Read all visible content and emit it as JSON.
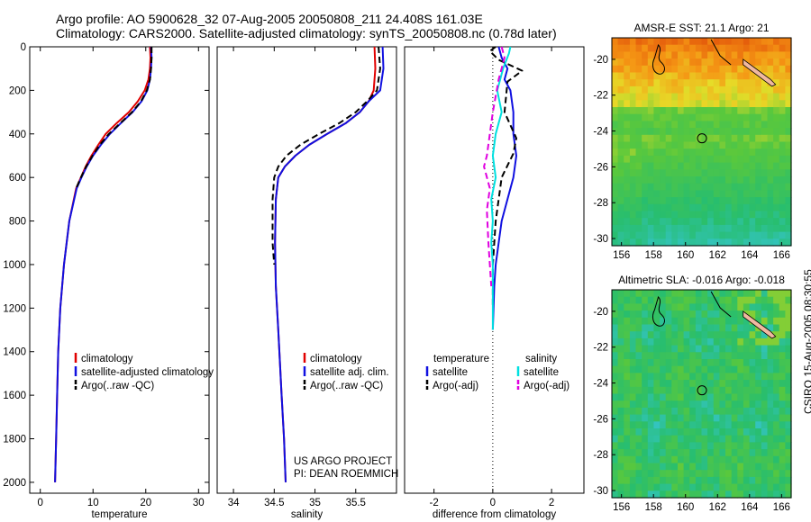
{
  "header": {
    "line1": "Argo profile: AO 5900628_32 07-Aug-2005 20050808_211 24.408S 161.03E",
    "line2": "Climatology: CARS2000. Satellite-adjusted climatology: synTS_20050808.nc (0.78d later)"
  },
  "credit": "CSIRO 15-Aug-2005 08:30:55",
  "colors": {
    "red": "#e00000",
    "blue": "#1010e0",
    "black": "#000000",
    "cyan": "#00e0e0",
    "magenta": "#e000e0"
  },
  "chart_data": [
    {
      "type": "line",
      "xlabel": "temperature",
      "xlim": [
        -2,
        32
      ],
      "ylim": [
        0,
        2050
      ],
      "xticks": [
        0,
        10,
        20,
        30
      ],
      "yticks": [
        0,
        200,
        400,
        600,
        800,
        1000,
        1200,
        1400,
        1600,
        1800,
        2000
      ],
      "legend": [
        "climatology",
        "satellite-adjusted climatology",
        "Argo(..raw -QC)"
      ],
      "series": [
        {
          "name": "climatology",
          "color": "red",
          "dash": "",
          "x": [
            20.8,
            20.9,
            20.8,
            20.5,
            19.8,
            18.5,
            16.8,
            14.5,
            12.4,
            11.0,
            9.7,
            8.6,
            7.7,
            6.8,
            5.5,
            4.5,
            3.8,
            3.4,
            3.2,
            3.0,
            2.8
          ],
          "y": [
            0,
            50,
            100,
            150,
            200,
            250,
            300,
            350,
            400,
            450,
            500,
            550,
            600,
            650,
            800,
            1000,
            1200,
            1400,
            1600,
            1800,
            2000
          ]
        },
        {
          "name": "satellite-adjusted climatology",
          "color": "blue",
          "dash": "",
          "x": [
            21.0,
            21.1,
            21.0,
            20.8,
            20.3,
            19.2,
            17.5,
            15.3,
            13.2,
            11.5,
            10.0,
            8.8,
            7.8,
            6.9,
            5.5,
            4.5,
            3.8,
            3.4,
            3.2,
            3.0,
            2.8
          ],
          "y": [
            0,
            50,
            100,
            150,
            200,
            250,
            300,
            350,
            400,
            450,
            500,
            550,
            600,
            650,
            800,
            1000,
            1200,
            1400,
            1600,
            1800,
            2000
          ]
        },
        {
          "name": "Argo(..raw -QC)",
          "color": "black",
          "dash": "7 4",
          "x": [
            21.1,
            21.1,
            21.0,
            20.8,
            20.2,
            19.1,
            17.4,
            15.2,
            13.0,
            11.3,
            9.9,
            8.7,
            7.7,
            6.8
          ],
          "y": [
            0,
            50,
            100,
            150,
            200,
            250,
            300,
            350,
            400,
            450,
            500,
            550,
            600,
            650
          ]
        }
      ],
      "annotations": []
    },
    {
      "type": "line",
      "xlabel": "salinity",
      "xlim": [
        33.8,
        36.0
      ],
      "ylim": [
        0,
        2050
      ],
      "xticks": [
        34,
        34.5,
        35,
        35.5
      ],
      "yticks": [],
      "legend": [
        "climatology",
        "satellite adj. clim.",
        "Argo(..raw -QC)"
      ],
      "series": [
        {
          "name": "climatology",
          "color": "red",
          "dash": "",
          "x": [
            35.73,
            35.74,
            35.72,
            35.66,
            35.55,
            35.38,
            35.15,
            34.93,
            34.76,
            34.63,
            34.55,
            34.52,
            34.51,
            34.52,
            34.55,
            34.59,
            34.62,
            34.64
          ],
          "y": [
            0,
            100,
            200,
            250,
            300,
            350,
            400,
            450,
            500,
            550,
            600,
            700,
            900,
            1100,
            1300,
            1600,
            1800,
            2000
          ]
        },
        {
          "name": "satellite adj. clim.",
          "color": "blue",
          "dash": "",
          "x": [
            35.83,
            35.84,
            35.8,
            35.66,
            35.55,
            35.38,
            35.15,
            34.93,
            34.76,
            34.63,
            34.55,
            34.52,
            34.51,
            34.52,
            34.55,
            34.59,
            34.62,
            34.64
          ],
          "y": [
            0,
            100,
            200,
            250,
            300,
            350,
            400,
            450,
            500,
            550,
            600,
            700,
            900,
            1100,
            1300,
            1600,
            1800,
            2000
          ]
        },
        {
          "name": "Argo(..raw -QC)",
          "color": "black",
          "dash": "7 4",
          "x": [
            35.78,
            35.8,
            35.76,
            35.64,
            35.5,
            35.3,
            35.05,
            34.82,
            34.65,
            34.55,
            34.5,
            34.48,
            34.48,
            34.5
          ],
          "y": [
            0,
            100,
            200,
            250,
            300,
            350,
            400,
            450,
            500,
            550,
            600,
            700,
            900,
            1000
          ]
        }
      ],
      "annotations": [
        "US ARGO PROJECT",
        "PI: DEAN ROEMMICH"
      ]
    },
    {
      "type": "line",
      "xlabel": "difference from climatology",
      "xlim": [
        -3,
        3.1
      ],
      "ylim": [
        0,
        2050
      ],
      "xticks": [
        -2,
        0,
        2
      ],
      "yticks": [],
      "legend_temp": [
        "temperature",
        "satellite",
        "Argo(-adj)"
      ],
      "legend_sal": [
        "salinity",
        "satellite",
        "Argo(-adj)"
      ],
      "series": [
        {
          "name": "temperature satellite",
          "color": "blue",
          "dash": "",
          "x": [
            0.2,
            0.3,
            0.5,
            0.4,
            0.6,
            0.7,
            0.7,
            0.8,
            0.7,
            0.5,
            0.3,
            0.2,
            0.1,
            0.05,
            0.0
          ],
          "y": [
            0,
            50,
            100,
            150,
            200,
            300,
            400,
            500,
            600,
            700,
            800,
            900,
            1000,
            1100,
            1300
          ]
        },
        {
          "name": "temperature Argo(-adj)",
          "color": "black",
          "dash": "7 4",
          "x": [
            0.1,
            -0.1,
            0.2,
            1.0,
            0.5,
            0.4,
            0.8,
            0.7,
            0.3,
            0.1,
            0.0,
            0.0,
            0.0
          ],
          "y": [
            0,
            20,
            60,
            110,
            160,
            300,
            420,
            490,
            600,
            800,
            1000,
            1100,
            1200
          ]
        },
        {
          "name": "salinity satellite",
          "color": "cyan",
          "dash": "",
          "x": [
            0.6,
            0.55,
            0.35,
            0.15,
            0.3,
            0.1,
            0.0,
            0.1,
            -0.05,
            0.0,
            -0.05,
            0.0,
            0.0
          ],
          "y": [
            0,
            30,
            100,
            200,
            300,
            400,
            500,
            600,
            700,
            800,
            900,
            1000,
            1300
          ]
        },
        {
          "name": "salinity Argo(-adj)",
          "color": "magenta",
          "dash": "7 4",
          "x": [
            0.3,
            0.4,
            0.2,
            0.0,
            -0.2,
            -0.3,
            -0.1,
            -0.2,
            -0.15,
            -0.1,
            -0.05
          ],
          "y": [
            0,
            50,
            150,
            300,
            500,
            550,
            650,
            750,
            900,
            1000,
            1100
          ]
        }
      ],
      "annotations": []
    },
    {
      "type": "heatmap",
      "title": "AMSR-E SST: 21.1 Argo: 21",
      "xlim": [
        155.4,
        166.6
      ],
      "ylim": [
        -30.4,
        -18.8
      ],
      "xticks": [
        156,
        158,
        160,
        162,
        164,
        166
      ],
      "yticks": [
        -20,
        -22,
        -24,
        -26,
        -28,
        -30
      ],
      "xtick_labels": [
        "156",
        "158",
        "160",
        "162",
        "164",
        "166"
      ],
      "ytick_labels": [
        "-20",
        "-22",
        "-24",
        "-26",
        "-28",
        "-30"
      ],
      "marker": {
        "lon": 161.03,
        "lat": -24.408
      },
      "annotations": []
    },
    {
      "type": "heatmap",
      "title": "Altimetric SLA: -0.016 Argo: -0.018",
      "xlim": [
        155.4,
        166.6
      ],
      "ylim": [
        -30.4,
        -18.8
      ],
      "xticks": [
        156,
        158,
        160,
        162,
        164,
        166
      ],
      "yticks": [
        -20,
        -22,
        -24,
        -26,
        -28,
        -30
      ],
      "xtick_labels": [
        "156",
        "158",
        "160",
        "162",
        "164",
        "166"
      ],
      "ytick_labels": [
        "-20",
        "-22",
        "-24",
        "-26",
        "-28",
        "-30"
      ],
      "marker": {
        "lon": 161.03,
        "lat": -24.408
      },
      "annotations": []
    }
  ]
}
